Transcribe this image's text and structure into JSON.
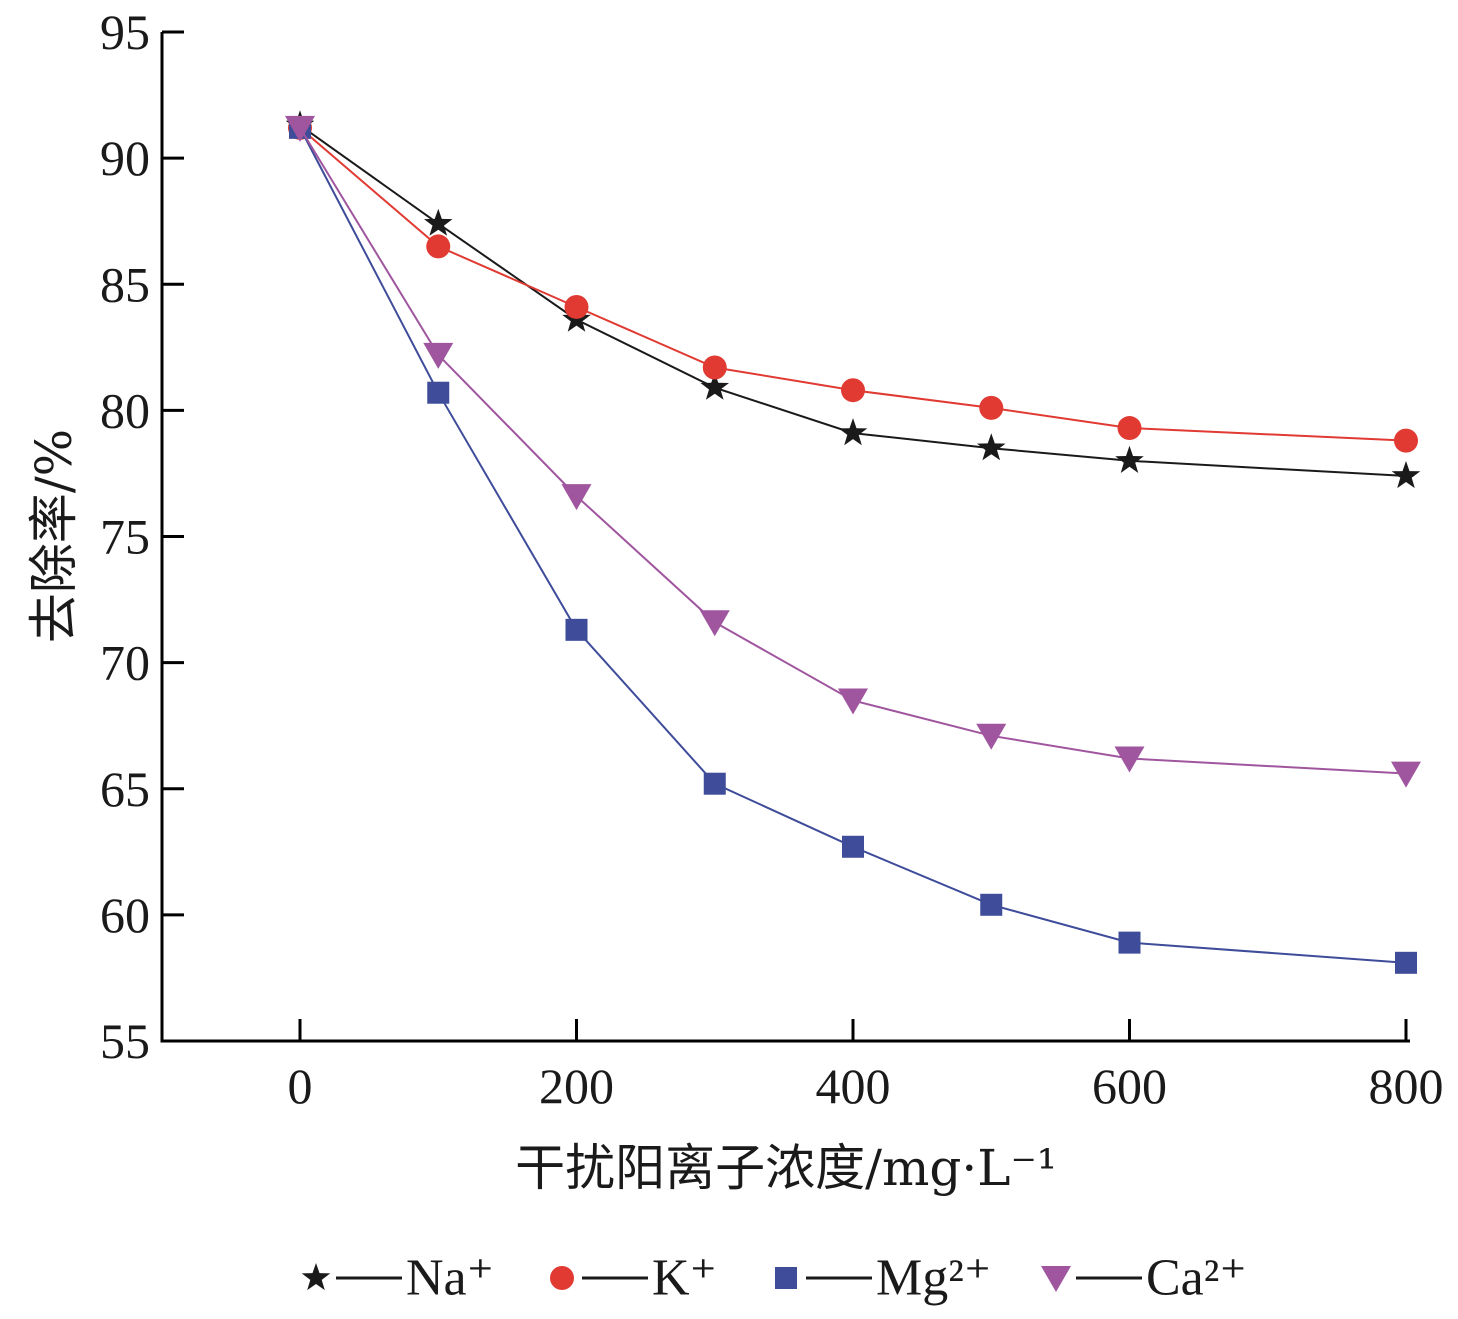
{
  "chart_data": {
    "type": "line",
    "title": "",
    "xlabel": "干扰阳离子浓度/mg·L⁻¹",
    "ylabel": "去除率/%",
    "xlim": [
      -100,
      800
    ],
    "ylim": [
      55,
      95
    ],
    "xticks": [
      "0",
      "200",
      "400",
      "600",
      "800"
    ],
    "yticks": [
      "55",
      "60",
      "65",
      "70",
      "75",
      "80",
      "85",
      "90",
      "95"
    ],
    "x": [
      0,
      100,
      200,
      300,
      400,
      500,
      600,
      800
    ],
    "grid": false,
    "legend": "bottom",
    "series": [
      {
        "name": "Na⁺",
        "marker": "star",
        "color": "#1a1a1a",
        "values": [
          91.3,
          87.4,
          83.6,
          80.9,
          79.1,
          78.5,
          78.0,
          77.4
        ]
      },
      {
        "name": "K⁺",
        "marker": "circle",
        "color": "#e03a33",
        "values": [
          91.2,
          86.5,
          84.1,
          81.7,
          80.8,
          80.1,
          79.3,
          78.8
        ]
      },
      {
        "name": "Mg²⁺",
        "marker": "square",
        "color": "#3e4c9a",
        "values": [
          91.2,
          80.7,
          71.3,
          65.2,
          62.7,
          60.4,
          58.9,
          58.1
        ]
      },
      {
        "name": "Ca²⁺",
        "marker": "triangle-down",
        "color": "#a0569e",
        "values": [
          91.2,
          82.2,
          76.6,
          71.6,
          68.5,
          67.1,
          66.2,
          65.6
        ]
      }
    ]
  }
}
